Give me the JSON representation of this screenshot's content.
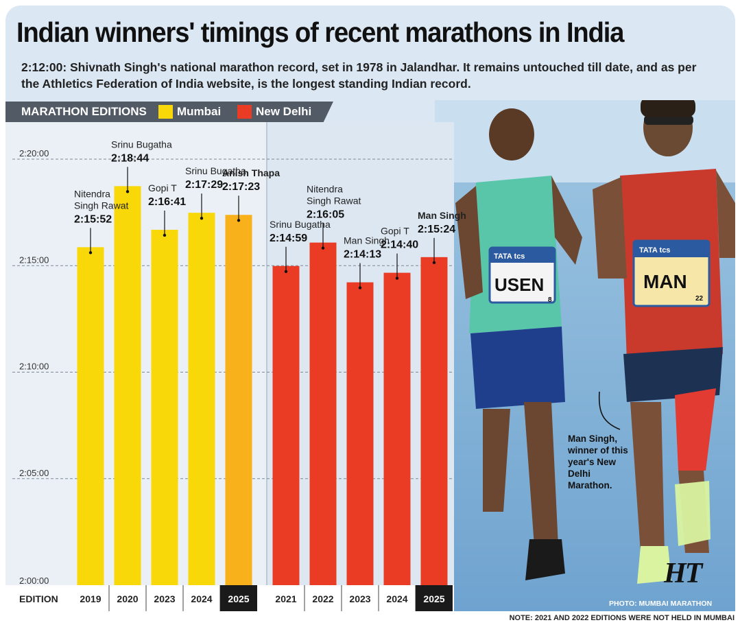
{
  "header": {
    "title": "Indian winners' timings of recent marathons in India",
    "subtitle": "2:12:00: Shivnath Singh's national marathon record, set in 1978 in Jalandhar. It remains untouched till date, and as per the Athletics Federation of India website, is the longest standing Indian record."
  },
  "legend": {
    "heading": "MARATHON EDITIONS",
    "mumbai": "Mumbai",
    "delhi": "New Delhi",
    "mumbai_color": "#f9d80a",
    "delhi_color": "#ea3b25",
    "highlight_color": "#f8b11a"
  },
  "chart_data": {
    "type": "bar",
    "title": "Indian winners' timings of recent marathons in India",
    "xlabel": "EDITION",
    "ylabel": "",
    "y_unit": "seconds (finish time)",
    "ylim": [
      7200,
      8400
    ],
    "y_ticks": [
      {
        "value": 7200,
        "label": "2:00:00"
      },
      {
        "value": 7500,
        "label": "2:05:00"
      },
      {
        "value": 7800,
        "label": "2:10:00"
      },
      {
        "value": 8100,
        "label": "2:15:00"
      },
      {
        "value": 8400,
        "label": "2:20:00"
      }
    ],
    "series": [
      {
        "name": "Mumbai",
        "bars": [
          {
            "edition": "2019",
            "winner": "Nitendra Singh Rawat",
            "time": "2:15:52",
            "seconds": 8152
          },
          {
            "edition": "2020",
            "winner": "Srinu Bugatha",
            "time": "2:18:44",
            "seconds": 8324
          },
          {
            "edition": "2023",
            "winner": "Gopi T",
            "time": "2:16:41",
            "seconds": 8201
          },
          {
            "edition": "2024",
            "winner": "Srinu Bugatha",
            "time": "2:17:29",
            "seconds": 8249
          },
          {
            "edition": "2025",
            "winner": "Anish Thapa",
            "time": "2:17:23",
            "seconds": 8243,
            "highlight": true
          }
        ]
      },
      {
        "name": "New Delhi",
        "bars": [
          {
            "edition": "2021",
            "winner": "Srinu Bugatha",
            "time": "2:14:59",
            "seconds": 8099
          },
          {
            "edition": "2022",
            "winner": "Nitendra Singh Rawat",
            "time": "2:16:05",
            "seconds": 8165
          },
          {
            "edition": "2023",
            "winner": "Man Singh",
            "time": "2:14:13",
            "seconds": 8053
          },
          {
            "edition": "2024",
            "winner": "Gopi T",
            "time": "2:14:40",
            "seconds": 8080
          },
          {
            "edition": "2025",
            "winner": "Man Singh",
            "time": "2:15:24",
            "seconds": 8124,
            "highlight": true
          }
        ]
      }
    ]
  },
  "photo": {
    "bib_left": "USEN",
    "bib_left_number": "8",
    "bib_right": "MAN",
    "bib_right_number": "22",
    "bib_sponsor": "TATA tcs",
    "caption": "Man Singh, winner of this year's New Delhi Marathon.",
    "credit": "PHOTO: MUMBAI MARATHON",
    "logo": "HT"
  },
  "footer": {
    "note": "NOTE: 2021 AND 2022 EDITIONS WERE NOT HELD IN MUMBAI"
  }
}
